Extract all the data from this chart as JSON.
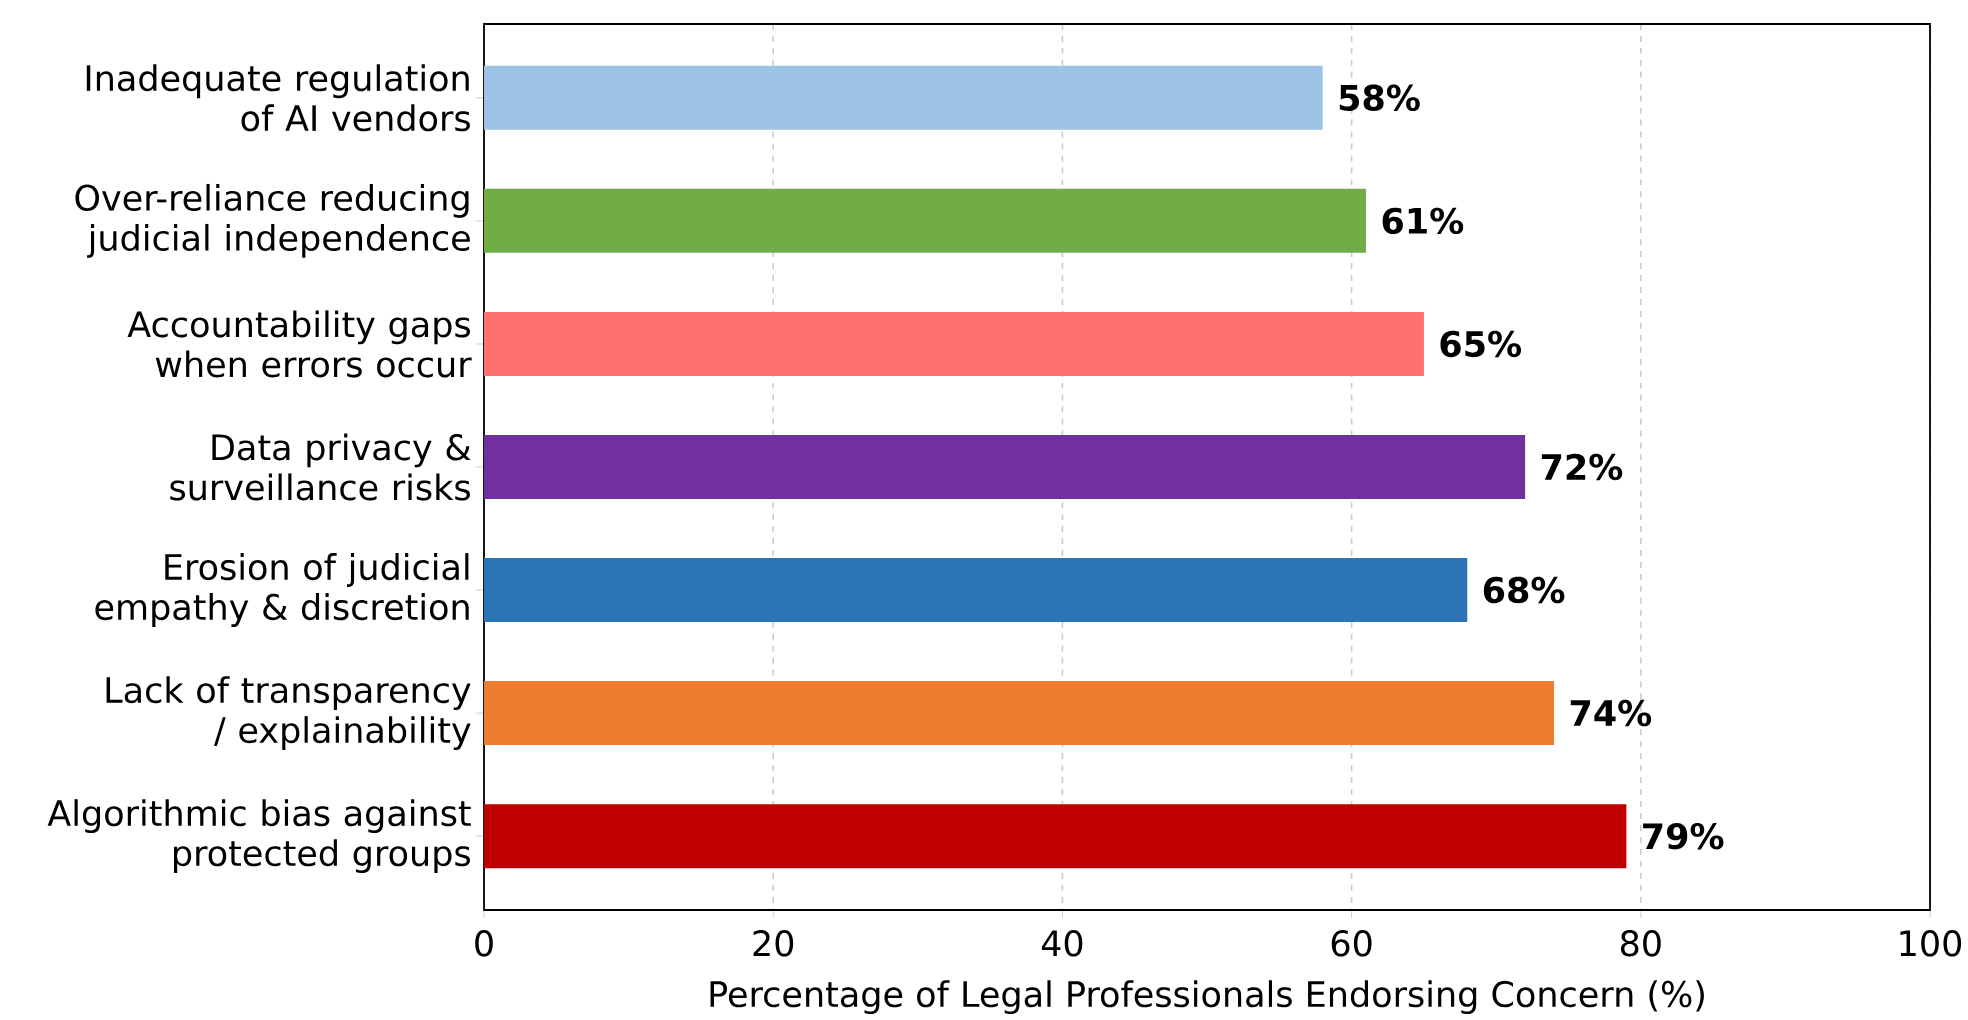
{
  "chart_data": {
    "type": "bar",
    "orientation": "horizontal",
    "xlabel": "Percentage of Legal Professionals Endorsing Concern (%)",
    "categories": [
      "Inadequate regulation of AI vendors",
      "Over-reliance reducing judicial independence",
      "Accountability gaps when errors occur",
      "Data privacy & surveillance risks",
      "Erosion of judicial empathy & discretion",
      "Lack of transparency / explainability",
      "Algorithmic bias against protected groups"
    ],
    "values": [
      58,
      61,
      65,
      72,
      68,
      74,
      79
    ],
    "colors": [
      "#9dc3e6",
      "#70ad47",
      "#ff7070",
      "#7030a0",
      "#2e75b6",
      "#ed7d31",
      "#c00000"
    ],
    "value_labels": [
      "58%",
      "61%",
      "65%",
      "72%",
      "68%",
      "74%",
      "79%"
    ],
    "xlim": [
      0,
      100
    ],
    "xticks": [
      0,
      20,
      40,
      60,
      80,
      100
    ],
    "grid": "x"
  }
}
